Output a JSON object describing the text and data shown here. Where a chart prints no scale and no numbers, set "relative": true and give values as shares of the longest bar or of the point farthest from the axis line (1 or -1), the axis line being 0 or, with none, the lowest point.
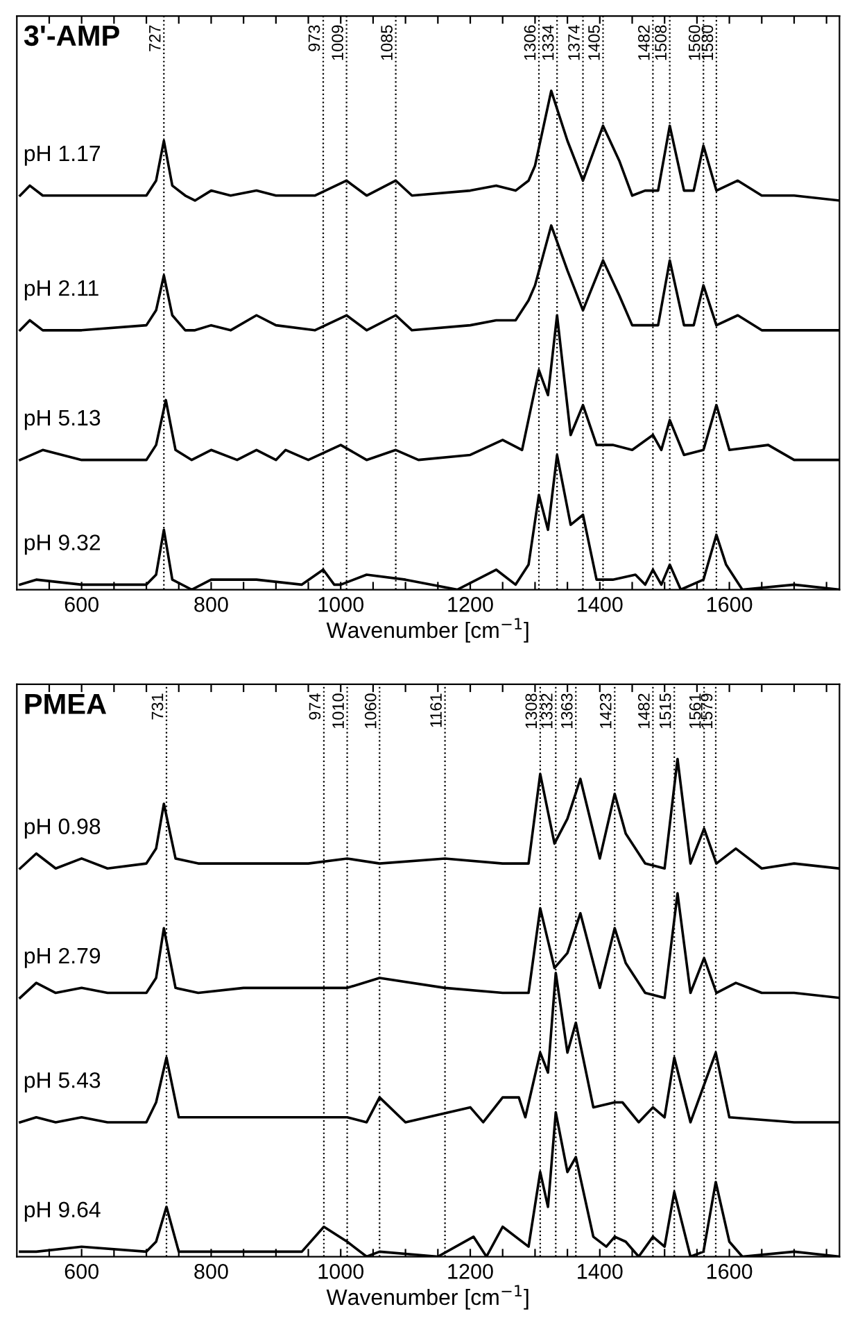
{
  "chart_data": [
    {
      "type": "line",
      "title": "3'-AMP",
      "xlabel": "Wavenumber [cm$^{−1}$]",
      "relative": true,
      "tick_labels": "x",
      "xlim": [
        500,
        1770
      ],
      "xticks": [
        {
          "value": 550,
          "label": null
        },
        600,
        {
          "value": 650,
          "label": null
        },
        {
          "value": 700,
          "label": null
        },
        {
          "value": 750,
          "label": null
        },
        800,
        {
          "value": 850,
          "label": null
        },
        {
          "value": 900,
          "label": null
        },
        {
          "value": 950,
          "label": null
        },
        1000,
        {
          "value": 1050,
          "label": null
        },
        {
          "value": 1100,
          "label": null
        },
        {
          "value": 1150,
          "label": null
        },
        1200,
        {
          "value": 1250,
          "label": null
        },
        {
          "value": 1300,
          "label": null
        },
        {
          "value": 1350,
          "label": null
        },
        1400,
        {
          "value": 1450,
          "label": null
        },
        {
          "value": 1500,
          "label": null
        },
        {
          "value": 1550,
          "label": null
        },
        1600,
        {
          "value": 1650,
          "label": null
        },
        {
          "value": 1700,
          "label": null
        },
        {
          "value": 1750,
          "label": null
        }
      ],
      "line_style": "solid",
      "marker": "none",
      "series": [
        {
          "name": "pH 1.17",
          "color": "#000000",
          "x": [
            505,
            520,
            540,
            600,
            700,
            715,
            727,
            740,
            760,
            775,
            800,
            830,
            870,
            900,
            960,
            1009,
            1040,
            1085,
            1110,
            1200,
            1240,
            1270,
            1290,
            1300,
            1325,
            1350,
            1374,
            1405,
            1430,
            1450,
            1470,
            1490,
            1508,
            1530,
            1545,
            1560,
            1580,
            1613,
            1650,
            1700,
            1770
          ],
          "values": [
            0.79,
            0.81,
            0.79,
            0.79,
            0.79,
            0.82,
            0.9,
            0.81,
            0.79,
            0.78,
            0.8,
            0.79,
            0.8,
            0.79,
            0.79,
            0.82,
            0.79,
            0.82,
            0.79,
            0.8,
            0.81,
            0.8,
            0.82,
            0.85,
            1.0,
            0.9,
            0.82,
            0.93,
            0.86,
            0.79,
            0.8,
            0.8,
            0.93,
            0.8,
            0.8,
            0.89,
            0.8,
            0.82,
            0.79,
            0.79,
            0.78
          ]
        },
        {
          "name": "pH 2.11",
          "color": "#000000",
          "x": [
            505,
            520,
            540,
            600,
            700,
            715,
            727,
            740,
            760,
            775,
            800,
            830,
            870,
            900,
            960,
            1009,
            1040,
            1085,
            1110,
            1200,
            1240,
            1270,
            1290,
            1300,
            1325,
            1350,
            1374,
            1405,
            1430,
            1450,
            1470,
            1490,
            1508,
            1530,
            1545,
            1560,
            1580,
            1613,
            1650,
            1700,
            1770
          ],
          "values": [
            0.52,
            0.54,
            0.52,
            0.52,
            0.53,
            0.56,
            0.63,
            0.55,
            0.52,
            0.52,
            0.53,
            0.52,
            0.55,
            0.53,
            0.52,
            0.55,
            0.52,
            0.55,
            0.52,
            0.53,
            0.54,
            0.54,
            0.58,
            0.61,
            0.73,
            0.64,
            0.56,
            0.66,
            0.59,
            0.53,
            0.53,
            0.53,
            0.66,
            0.53,
            0.53,
            0.61,
            0.53,
            0.55,
            0.52,
            0.52,
            0.52
          ]
        },
        {
          "name": "pH 5.13",
          "color": "#000000",
          "x": [
            505,
            540,
            600,
            700,
            715,
            730,
            745,
            770,
            800,
            840,
            870,
            900,
            915,
            950,
            1000,
            1040,
            1085,
            1120,
            1200,
            1250,
            1280,
            1306,
            1320,
            1334,
            1355,
            1374,
            1395,
            1420,
            1450,
            1482,
            1495,
            1508,
            1530,
            1560,
            1580,
            1600,
            1660,
            1700,
            1770
          ],
          "values": [
            0.26,
            0.28,
            0.26,
            0.26,
            0.29,
            0.38,
            0.28,
            0.26,
            0.28,
            0.26,
            0.28,
            0.26,
            0.28,
            0.26,
            0.29,
            0.26,
            0.28,
            0.26,
            0.27,
            0.3,
            0.28,
            0.44,
            0.39,
            0.55,
            0.31,
            0.37,
            0.29,
            0.29,
            0.28,
            0.31,
            0.28,
            0.34,
            0.27,
            0.28,
            0.37,
            0.28,
            0.29,
            0.26,
            0.26
          ]
        },
        {
          "name": "pH 9.32",
          "color": "#000000",
          "x": [
            505,
            530,
            600,
            700,
            715,
            727,
            740,
            770,
            800,
            870,
            940,
            973,
            990,
            1000,
            1040,
            1100,
            1180,
            1240,
            1270,
            1290,
            1306,
            1320,
            1334,
            1355,
            1374,
            1395,
            1420,
            1455,
            1470,
            1482,
            1495,
            1508,
            1525,
            1560,
            1580,
            1595,
            1620,
            1700,
            1770
          ],
          "values": [
            0.01,
            0.02,
            0.01,
            0.01,
            0.03,
            0.12,
            0.02,
            0.0,
            0.02,
            0.02,
            0.01,
            0.04,
            0.01,
            0.01,
            0.03,
            0.02,
            0.0,
            0.04,
            0.01,
            0.05,
            0.19,
            0.12,
            0.27,
            0.13,
            0.15,
            0.02,
            0.02,
            0.03,
            0.01,
            0.04,
            0.01,
            0.05,
            0.0,
            0.02,
            0.11,
            0.05,
            0.0,
            0.01,
            0.0
          ]
        }
      ],
      "ref_lines": [
        {
          "axis": "x",
          "value": 727,
          "label": "727",
          "color": "#000000",
          "line_style": "dotted"
        },
        {
          "axis": "x",
          "value": 973,
          "label": "973",
          "color": "#000000",
          "line_style": "dotted"
        },
        {
          "axis": "x",
          "value": 1009,
          "label": "1009",
          "color": "#000000",
          "line_style": "dotted"
        },
        {
          "axis": "x",
          "value": 1085,
          "label": "1085",
          "color": "#000000",
          "line_style": "dotted"
        },
        {
          "axis": "x",
          "value": 1306,
          "label": "1306",
          "color": "#000000",
          "line_style": "dotted"
        },
        {
          "axis": "x",
          "value": 1334,
          "label": "1334",
          "color": "#000000",
          "line_style": "dotted"
        },
        {
          "axis": "x",
          "value": 1374,
          "label": "1374",
          "color": "#000000",
          "line_style": "dotted"
        },
        {
          "axis": "x",
          "value": 1405,
          "label": "1405",
          "color": "#000000",
          "line_style": "dotted"
        },
        {
          "axis": "x",
          "value": 1482,
          "label": "1482",
          "color": "#000000",
          "line_style": "dotted"
        },
        {
          "axis": "x",
          "value": 1508,
          "label": "1508",
          "color": "#000000",
          "line_style": "dotted"
        },
        {
          "axis": "x",
          "value": 1560,
          "label": "1560",
          "color": "#000000",
          "line_style": "dotted"
        },
        {
          "axis": "x",
          "value": 1580,
          "label": "1580",
          "color": "#000000",
          "line_style": "dotted"
        }
      ]
    },
    {
      "type": "line",
      "title": "PMEA",
      "xlabel": "Wavenumber [cm$^{−1}$]",
      "relative": true,
      "tick_labels": "x",
      "xlim": [
        500,
        1770
      ],
      "xticks": [
        {
          "value": 550,
          "label": null
        },
        600,
        {
          "value": 650,
          "label": null
        },
        {
          "value": 700,
          "label": null
        },
        {
          "value": 750,
          "label": null
        },
        800,
        {
          "value": 850,
          "label": null
        },
        {
          "value": 900,
          "label": null
        },
        {
          "value": 950,
          "label": null
        },
        1000,
        {
          "value": 1050,
          "label": null
        },
        {
          "value": 1100,
          "label": null
        },
        {
          "value": 1150,
          "label": null
        },
        1200,
        {
          "value": 1250,
          "label": null
        },
        {
          "value": 1300,
          "label": null
        },
        {
          "value": 1350,
          "label": null
        },
        1400,
        {
          "value": 1450,
          "label": null
        },
        {
          "value": 1500,
          "label": null
        },
        {
          "value": 1550,
          "label": null
        },
        1600,
        {
          "value": 1650,
          "label": null
        },
        {
          "value": 1700,
          "label": null
        },
        {
          "value": 1750,
          "label": null
        }
      ],
      "line_style": "solid",
      "marker": "none",
      "series": [
        {
          "name": "pH 0.98",
          "color": "#000000",
          "x": [
            505,
            530,
            560,
            600,
            640,
            700,
            715,
            727,
            745,
            780,
            850,
            950,
            1010,
            1060,
            1161,
            1250,
            1290,
            1308,
            1330,
            1350,
            1370,
            1400,
            1423,
            1440,
            1470,
            1500,
            1520,
            1540,
            1561,
            1580,
            1610,
            1650,
            1700,
            1770
          ],
          "values": [
            0.78,
            0.81,
            0.78,
            0.8,
            0.78,
            0.79,
            0.82,
            0.91,
            0.8,
            0.79,
            0.79,
            0.79,
            0.8,
            0.79,
            0.8,
            0.79,
            0.79,
            0.97,
            0.83,
            0.88,
            0.96,
            0.8,
            0.93,
            0.85,
            0.79,
            0.78,
            1.0,
            0.79,
            0.86,
            0.79,
            0.82,
            0.78,
            0.79,
            0.78
          ]
        },
        {
          "name": "pH 2.79",
          "color": "#000000",
          "x": [
            505,
            530,
            560,
            600,
            640,
            700,
            715,
            727,
            745,
            780,
            850,
            950,
            1010,
            1060,
            1161,
            1250,
            1290,
            1308,
            1330,
            1350,
            1370,
            1400,
            1423,
            1440,
            1470,
            1500,
            1520,
            1540,
            1561,
            1580,
            1610,
            1650,
            1700,
            1770
          ],
          "values": [
            0.52,
            0.55,
            0.53,
            0.54,
            0.53,
            0.53,
            0.56,
            0.66,
            0.54,
            0.53,
            0.54,
            0.54,
            0.54,
            0.56,
            0.54,
            0.53,
            0.53,
            0.7,
            0.58,
            0.61,
            0.69,
            0.54,
            0.66,
            0.59,
            0.53,
            0.52,
            0.73,
            0.53,
            0.6,
            0.53,
            0.55,
            0.53,
            0.53,
            0.52
          ]
        },
        {
          "name": "pH 5.43",
          "color": "#000000",
          "x": [
            505,
            530,
            560,
            600,
            640,
            700,
            715,
            731,
            750,
            780,
            860,
            910,
            1010,
            1040,
            1060,
            1100,
            1200,
            1220,
            1250,
            1275,
            1285,
            1308,
            1320,
            1332,
            1350,
            1363,
            1390,
            1423,
            1435,
            1460,
            1482,
            1500,
            1515,
            1540,
            1579,
            1600,
            1700,
            1770
          ],
          "values": [
            0.27,
            0.28,
            0.27,
            0.28,
            0.27,
            0.27,
            0.31,
            0.4,
            0.28,
            0.28,
            0.28,
            0.28,
            0.28,
            0.27,
            0.32,
            0.27,
            0.3,
            0.27,
            0.32,
            0.32,
            0.28,
            0.41,
            0.37,
            0.57,
            0.41,
            0.47,
            0.3,
            0.31,
            0.31,
            0.27,
            0.3,
            0.28,
            0.4,
            0.27,
            0.41,
            0.28,
            0.27,
            0.27
          ]
        },
        {
          "name": "pH 9.64",
          "color": "#000000",
          "x": [
            505,
            530,
            600,
            700,
            715,
            731,
            750,
            800,
            870,
            940,
            974,
            1010,
            1040,
            1060,
            1150,
            1205,
            1225,
            1250,
            1290,
            1308,
            1320,
            1332,
            1350,
            1363,
            1390,
            1410,
            1423,
            1440,
            1460,
            1482,
            1500,
            1515,
            1540,
            1560,
            1579,
            1600,
            1620,
            1700,
            1770
          ],
          "values": [
            0.01,
            0.01,
            0.02,
            0.01,
            0.03,
            0.1,
            0.01,
            0.01,
            0.01,
            0.01,
            0.06,
            0.03,
            0.0,
            0.01,
            0.0,
            0.04,
            0.0,
            0.06,
            0.02,
            0.17,
            0.1,
            0.29,
            0.17,
            0.2,
            0.04,
            0.02,
            0.04,
            0.03,
            0.0,
            0.04,
            0.02,
            0.13,
            0.0,
            0.01,
            0.15,
            0.03,
            0.0,
            0.01,
            0.0
          ]
        }
      ],
      "ref_lines": [
        {
          "axis": "x",
          "value": 731,
          "label": "731",
          "color": "#000000",
          "line_style": "dotted"
        },
        {
          "axis": "x",
          "value": 974,
          "label": "974",
          "color": "#000000",
          "line_style": "dotted"
        },
        {
          "axis": "x",
          "value": 1010,
          "label": "1010",
          "color": "#000000",
          "line_style": "dotted"
        },
        {
          "axis": "x",
          "value": 1060,
          "label": "1060",
          "color": "#000000",
          "line_style": "dotted"
        },
        {
          "axis": "x",
          "value": 1161,
          "label": "1161",
          "color": "#000000",
          "line_style": "dotted"
        },
        {
          "axis": "x",
          "value": 1308,
          "label": "1308",
          "color": "#000000",
          "line_style": "dotted"
        },
        {
          "axis": "x",
          "value": 1332,
          "label": "1332",
          "color": "#000000",
          "line_style": "dotted"
        },
        {
          "axis": "x",
          "value": 1363,
          "label": "1363",
          "color": "#000000",
          "line_style": "dotted"
        },
        {
          "axis": "x",
          "value": 1423,
          "label": "1423",
          "color": "#000000",
          "line_style": "dotted"
        },
        {
          "axis": "x",
          "value": 1482,
          "label": "1482",
          "color": "#000000",
          "line_style": "dotted"
        },
        {
          "axis": "x",
          "value": 1515,
          "label": "1515",
          "color": "#000000",
          "line_style": "dotted"
        },
        {
          "axis": "x",
          "value": 1561,
          "label": "1561",
          "color": "#000000",
          "line_style": "dotted"
        },
        {
          "axis": "x",
          "value": 1579,
          "label": "1579",
          "color": "#000000",
          "line_style": "dotted"
        }
      ]
    }
  ]
}
